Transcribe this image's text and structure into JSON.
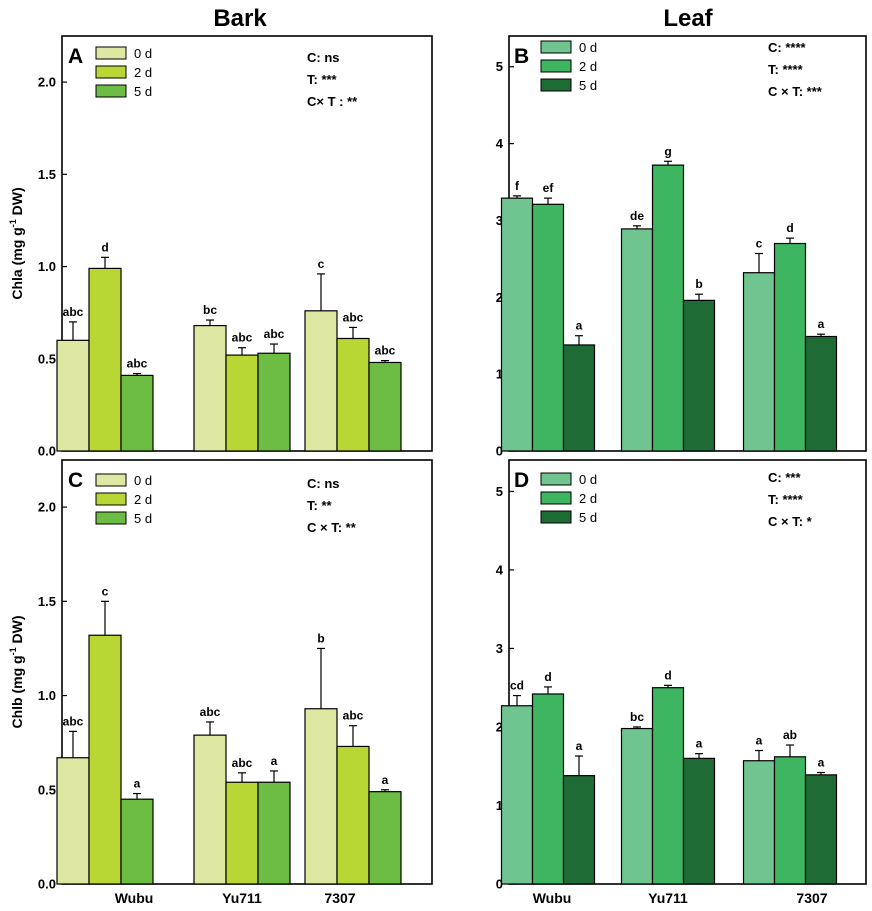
{
  "titles": {
    "left": "Bark",
    "right": "Leaf"
  },
  "chart_data": [
    {
      "id": "A",
      "type": "bar",
      "letter": "A",
      "ylabel_main": "Chla (mg g",
      "ylabel_sup": "-1",
      "ylabel_tail": " DW)",
      "ylim": [
        0,
        2.25
      ],
      "yticks": [
        "0.0",
        "0.5",
        "1.0",
        "1.5",
        "2.0"
      ],
      "ytick_values": [
        0,
        0.5,
        1.0,
        1.5,
        2.0
      ],
      "categories": [
        "Wubu",
        "Yu711",
        "7307"
      ],
      "series": [
        {
          "name": "0 d",
          "color": "#dfe8a3",
          "values": [
            0.6,
            0.68,
            0.76
          ],
          "errors": [
            0.1,
            0.03,
            0.2
          ],
          "labels": [
            "abc",
            "bc",
            "c"
          ]
        },
        {
          "name": "2 d",
          "color": "#b8d735",
          "values": [
            0.99,
            0.52,
            0.61
          ],
          "errors": [
            0.06,
            0.04,
            0.06
          ],
          "labels": [
            "d",
            "abc",
            "abc"
          ]
        },
        {
          "name": "5 d",
          "color": "#6dbd45",
          "values": [
            0.41,
            0.53,
            0.48
          ],
          "errors": [
            0.01,
            0.05,
            0.01
          ],
          "labels": [
            "abc",
            "abc",
            "abc"
          ]
        }
      ],
      "stats": [
        "C: ns",
        "T: ***",
        "C× T : **"
      ]
    },
    {
      "id": "B",
      "type": "bar",
      "letter": "B",
      "ylabel_main": "",
      "ylabel_sup": "",
      "ylabel_tail": "",
      "ylim": [
        0,
        5.4
      ],
      "yticks": [
        "0",
        "1",
        "2",
        "3",
        "4",
        "5"
      ],
      "ytick_values": [
        0,
        1,
        2,
        3,
        4,
        5
      ],
      "categories": [
        "Wubu",
        "Yu711",
        "7307"
      ],
      "series": [
        {
          "name": "0 d",
          "color": "#6fc48f",
          "values": [
            3.29,
            2.89,
            2.32
          ],
          "errors": [
            0.03,
            0.04,
            0.25
          ],
          "labels": [
            "f",
            "de",
            "c"
          ]
        },
        {
          "name": "2 d",
          "color": "#3db561",
          "values": [
            3.21,
            3.72,
            2.7
          ],
          "errors": [
            0.08,
            0.05,
            0.07
          ],
          "labels": [
            "ef",
            "g",
            "d"
          ]
        },
        {
          "name": "5 d",
          "color": "#1e6b36",
          "values": [
            1.38,
            1.96,
            1.49
          ],
          "errors": [
            0.12,
            0.08,
            0.03
          ],
          "labels": [
            "a",
            "b",
            "a"
          ]
        }
      ],
      "stats": [
        "C: ****",
        "T: ****",
        "C × T: ***"
      ]
    },
    {
      "id": "C",
      "type": "bar",
      "letter": "C",
      "ylabel_main": "Chlb (mg g",
      "ylabel_sup": "-1",
      "ylabel_tail": " DW)",
      "ylim": [
        0,
        2.25
      ],
      "yticks": [
        "0.0",
        "0.5",
        "1.0",
        "1.5",
        "2.0"
      ],
      "ytick_values": [
        0,
        0.5,
        1.0,
        1.5,
        2.0
      ],
      "categories": [
        "Wubu",
        "Yu711",
        "7307"
      ],
      "series": [
        {
          "name": "0 d",
          "color": "#dfe8a3",
          "values": [
            0.67,
            0.79,
            0.93
          ],
          "errors": [
            0.14,
            0.07,
            0.32
          ],
          "labels": [
            "abc",
            "abc",
            "b"
          ]
        },
        {
          "name": "2 d",
          "color": "#b8d735",
          "values": [
            1.32,
            0.54,
            0.73
          ],
          "errors": [
            0.18,
            0.05,
            0.11
          ],
          "labels": [
            "c",
            "abc",
            "abc"
          ]
        },
        {
          "name": "5 d",
          "color": "#6dbd45",
          "values": [
            0.45,
            0.54,
            0.49
          ],
          "errors": [
            0.03,
            0.06,
            0.01
          ],
          "labels": [
            "a",
            "a",
            "a"
          ]
        }
      ],
      "stats": [
        "C: ns",
        "T: **",
        "C × T: **"
      ]
    },
    {
      "id": "D",
      "type": "bar",
      "letter": "D",
      "ylabel_main": "",
      "ylabel_sup": "",
      "ylabel_tail": "",
      "ylim": [
        0,
        5.4
      ],
      "yticks": [
        "0",
        "1",
        "2",
        "3",
        "4",
        "5"
      ],
      "ytick_values": [
        0,
        1,
        2,
        3,
        4,
        5
      ],
      "categories": [
        "Wubu",
        "Yu711",
        "7307"
      ],
      "series": [
        {
          "name": "0 d",
          "color": "#6fc48f",
          "values": [
            2.27,
            1.98,
            1.57
          ],
          "errors": [
            0.13,
            0.02,
            0.13
          ],
          "labels": [
            "cd",
            "bc",
            "a"
          ]
        },
        {
          "name": "2 d",
          "color": "#3db561",
          "values": [
            2.42,
            2.5,
            1.62
          ],
          "errors": [
            0.09,
            0.03,
            0.15
          ],
          "labels": [
            "d",
            "d",
            "ab"
          ]
        },
        {
          "name": "5 d",
          "color": "#1e6b36",
          "values": [
            1.38,
            1.6,
            1.39
          ],
          "errors": [
            0.25,
            0.06,
            0.03
          ],
          "labels": [
            "a",
            "a",
            "a"
          ]
        }
      ],
      "stats": [
        "C: ***",
        "T: ****",
        "C × T: *"
      ]
    }
  ]
}
